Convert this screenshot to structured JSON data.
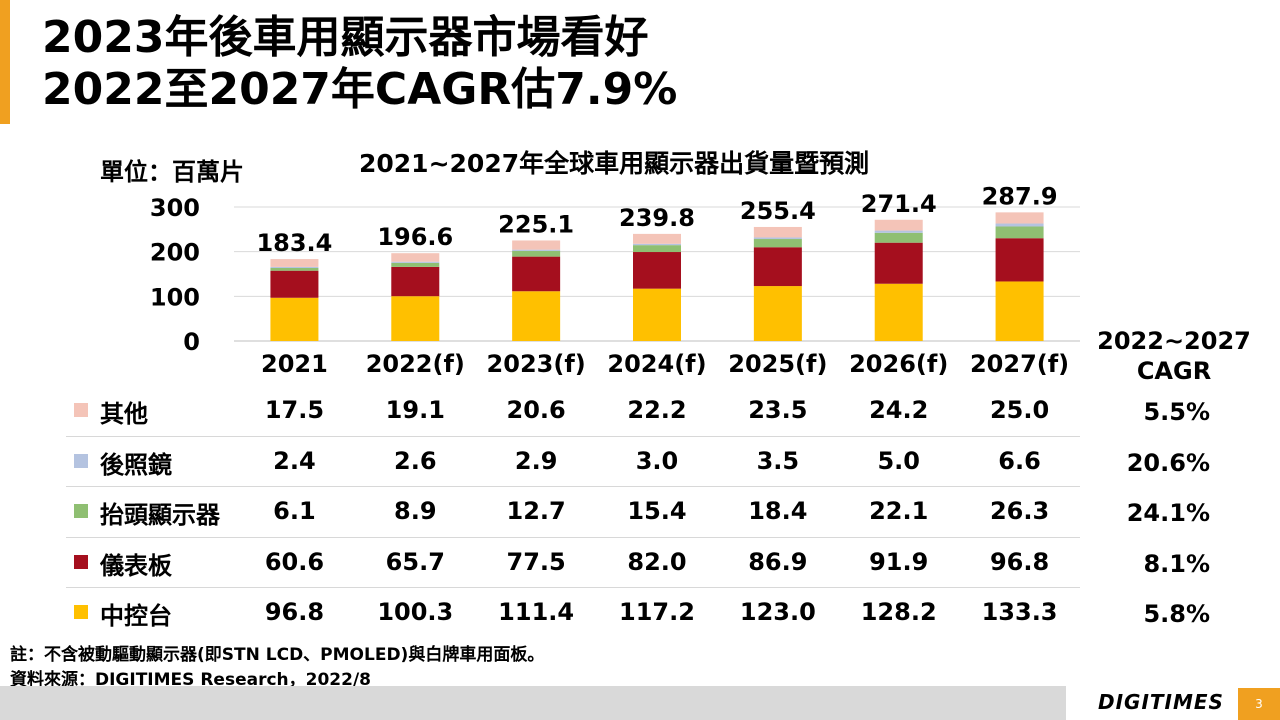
{
  "slide": {
    "title_line1": "2023年後車用顯示器市場看好",
    "title_line2": "2022至2027年CAGR估7.9%",
    "unit": "單位：百萬片",
    "cagr_header_line1": "2022~2027",
    "cagr_header_line2": "CAGR",
    "note": "註：不含被動驅動顯示器(即STN LCD、PMOLED)與白牌車用面板。",
    "source": "資料來源：DIGITIMES Research，2022/8",
    "logo": "DIGITIMES",
    "page_number": "3"
  },
  "chart_data": {
    "type": "bar",
    "stacked": true,
    "title": "2021~2027年全球車用顯示器出貨量暨預測",
    "categories": [
      "2021",
      "2022(f)",
      "2023(f)",
      "2024(f)",
      "2025(f)",
      "2026(f)",
      "2027(f)"
    ],
    "totals": [
      "183.4",
      "196.6",
      "225.1",
      "239.8",
      "255.4",
      "271.4",
      "287.9"
    ],
    "y_ticks": [
      0,
      100,
      200,
      300
    ],
    "ylim": [
      0,
      300
    ],
    "grid": true,
    "series": [
      {
        "name": "中控台",
        "color": "#ffc000",
        "values": [
          96.8,
          100.3,
          111.4,
          117.2,
          123.0,
          128.2,
          133.3
        ],
        "labels": [
          "96.8",
          "100.3",
          "111.4",
          "117.2",
          "123.0",
          "128.2",
          "133.3"
        ],
        "cagr": "5.8%"
      },
      {
        "name": "儀表板",
        "color": "#a50f1e",
        "values": [
          60.6,
          65.7,
          77.5,
          82.0,
          86.9,
          91.9,
          96.8
        ],
        "labels": [
          "60.6",
          "65.7",
          "77.5",
          "82.0",
          "86.9",
          "91.9",
          "96.8"
        ],
        "cagr": "8.1%"
      },
      {
        "name": "抬頭顯示器",
        "color": "#8fbf72",
        "values": [
          6.1,
          8.9,
          12.7,
          15.4,
          18.4,
          22.1,
          26.3
        ],
        "labels": [
          "6.1",
          "8.9",
          "12.7",
          "15.4",
          "18.4",
          "22.1",
          "26.3"
        ],
        "cagr": "24.1%"
      },
      {
        "name": "後照鏡",
        "color": "#b4c3e0",
        "values": [
          2.4,
          2.6,
          2.9,
          3.0,
          3.5,
          5.0,
          6.6
        ],
        "labels": [
          "2.4",
          "2.6",
          "2.9",
          "3.0",
          "3.5",
          "5.0",
          "6.6"
        ],
        "cagr": "20.6%"
      },
      {
        "name": "其他",
        "color": "#f4c4b8",
        "values": [
          17.5,
          19.1,
          20.6,
          22.2,
          23.5,
          24.2,
          25.0
        ],
        "labels": [
          "17.5",
          "19.1",
          "20.6",
          "22.2",
          "23.5",
          "24.2",
          "25.0"
        ],
        "cagr": "5.5%"
      }
    ]
  }
}
